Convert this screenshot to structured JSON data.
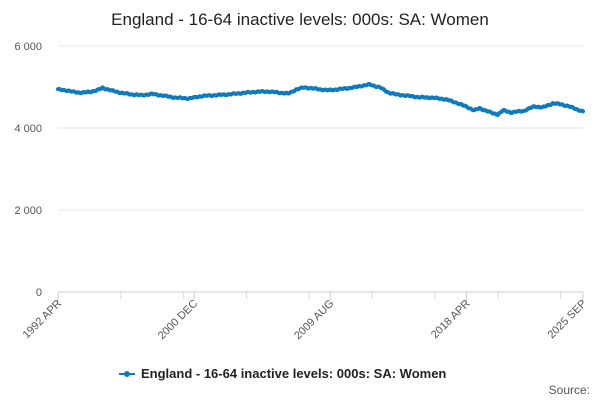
{
  "chart_data": {
    "type": "line",
    "title": "England - 16-64 inactive levels: 000s: SA: Women",
    "xlabel": "",
    "ylabel": "",
    "ylim": [
      0,
      6000
    ],
    "yticks": [
      0,
      2000,
      4000,
      6000
    ],
    "ytick_labels": [
      "0",
      "2 000",
      "4 000",
      "6 000"
    ],
    "xtick_labels": [
      "1992 APR",
      "2000 DEC",
      "2009 AUG",
      "2018 APR",
      "2025 SEP"
    ],
    "x_month_index_range": [
      0,
      401
    ],
    "xtick_month_index": [
      0,
      104,
      208,
      312,
      401
    ],
    "minor_tick_month_index": [
      48,
      96,
      144,
      192,
      240,
      288,
      336,
      384
    ],
    "legend": [
      "England - 16-64 inactive levels: 000s: SA: Women"
    ],
    "legend_position": "bottom-center",
    "grid": "horizontal",
    "series": [
      {
        "name": "England - 16-64 inactive levels: 000s: SA: Women",
        "color": "#0f7bbd",
        "keypoints": [
          [
            0,
            4940
          ],
          [
            6,
            4920
          ],
          [
            12,
            4880
          ],
          [
            18,
            4860
          ],
          [
            24,
            4880
          ],
          [
            30,
            4920
          ],
          [
            34,
            4980
          ],
          [
            40,
            4920
          ],
          [
            48,
            4860
          ],
          [
            56,
            4820
          ],
          [
            64,
            4800
          ],
          [
            72,
            4830
          ],
          [
            80,
            4790
          ],
          [
            90,
            4740
          ],
          [
            100,
            4720
          ],
          [
            110,
            4780
          ],
          [
            120,
            4800
          ],
          [
            130,
            4820
          ],
          [
            140,
            4850
          ],
          [
            150,
            4880
          ],
          [
            160,
            4890
          ],
          [
            170,
            4860
          ],
          [
            176,
            4840
          ],
          [
            182,
            4940
          ],
          [
            188,
            4990
          ],
          [
            196,
            4960
          ],
          [
            206,
            4920
          ],
          [
            216,
            4950
          ],
          [
            226,
            4990
          ],
          [
            232,
            5030
          ],
          [
            238,
            5060
          ],
          [
            246,
            4990
          ],
          [
            252,
            4870
          ],
          [
            258,
            4820
          ],
          [
            266,
            4790
          ],
          [
            276,
            4750
          ],
          [
            286,
            4740
          ],
          [
            296,
            4700
          ],
          [
            304,
            4620
          ],
          [
            312,
            4520
          ],
          [
            318,
            4430
          ],
          [
            322,
            4480
          ],
          [
            328,
            4410
          ],
          [
            332,
            4360
          ],
          [
            336,
            4330
          ],
          [
            340,
            4430
          ],
          [
            346,
            4380
          ],
          [
            356,
            4420
          ],
          [
            364,
            4530
          ],
          [
            370,
            4500
          ],
          [
            378,
            4600
          ],
          [
            384,
            4580
          ],
          [
            390,
            4530
          ],
          [
            396,
            4460
          ],
          [
            401,
            4400
          ]
        ]
      }
    ],
    "source_label": "Source:"
  }
}
